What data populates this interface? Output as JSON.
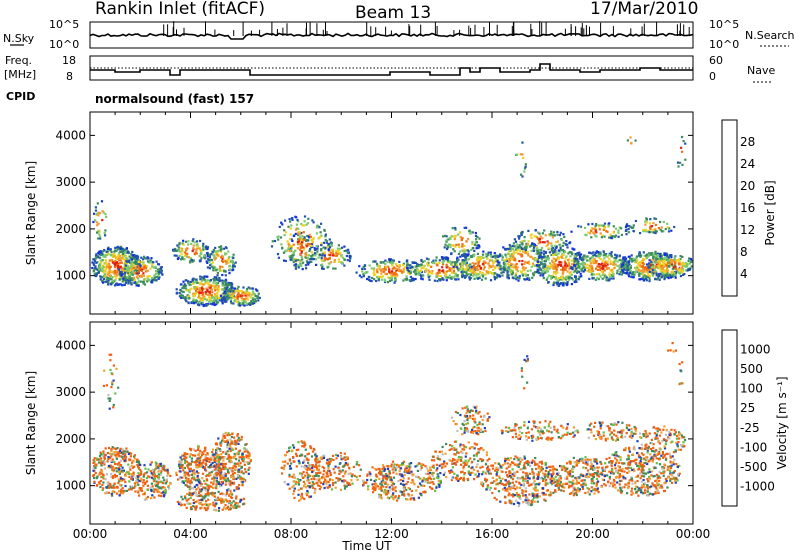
{
  "header": {
    "title": "Rankin Inlet (fitACF)",
    "beam": "Beam 13",
    "date": "17/Mar/2010"
  },
  "top_panel": {
    "left_label": "N.Sky",
    "left_ticks": [
      "10^5",
      "10^0"
    ],
    "right_label": "N.Search",
    "right_ticks": [
      "10^5",
      "10^0"
    ]
  },
  "freq_panel": {
    "left_label_1": "Freq.",
    "left_label_2": "[MHz]",
    "left_ticks": [
      "18",
      "8"
    ],
    "right_label": "Nave",
    "right_ticks": [
      "60",
      "0"
    ],
    "cpid_label": "CPID",
    "cpid_text": "normalsound (fast) 157"
  },
  "colors": {
    "power_scale": [
      "#1030e0",
      "#2050b0",
      "#3b8c5a",
      "#7bc96f",
      "#f0d020",
      "#f09a30",
      "#f07010",
      "#e02010"
    ],
    "velocity_scale": [
      "#e01010",
      "#f06010",
      "#f0a030",
      "#c0c0c0",
      "#c0c0c0",
      "#60c040",
      "#3b8c5a",
      "#2040c0"
    ]
  },
  "chart_data": [
    {
      "type": "heatmap",
      "title": "Power",
      "ylabel": "Slant Range [km]",
      "xlabel": "",
      "y_ticks": [
        "1000",
        "2000",
        "3000",
        "4000"
      ],
      "ylim": [
        180,
        4500
      ],
      "colorbar_label": "Power [dB]",
      "colorbar_ticks": [
        "4",
        "8",
        "12",
        "16",
        "20",
        "24",
        "28"
      ],
      "x_ticks": [
        "00:00",
        "04:00",
        "08:00",
        "12:00",
        "16:00",
        "20:00",
        "00:00"
      ]
    },
    {
      "type": "heatmap",
      "title": "Velocity",
      "ylabel": "Slant Range [km]",
      "xlabel": "Time UT",
      "y_ticks": [
        "1000",
        "2000",
        "3000",
        "4000"
      ],
      "ylim": [
        180,
        4500
      ],
      "colorbar_label": "Velocity [m s⁻¹]",
      "colorbar_ticks": [
        "1000",
        "500",
        "100",
        "25",
        "-25",
        "-100",
        "-500",
        "-1000"
      ],
      "x_ticks": [
        "00:00",
        "04:00",
        "08:00",
        "12:00",
        "16:00",
        "20:00",
        "00:00"
      ]
    }
  ]
}
